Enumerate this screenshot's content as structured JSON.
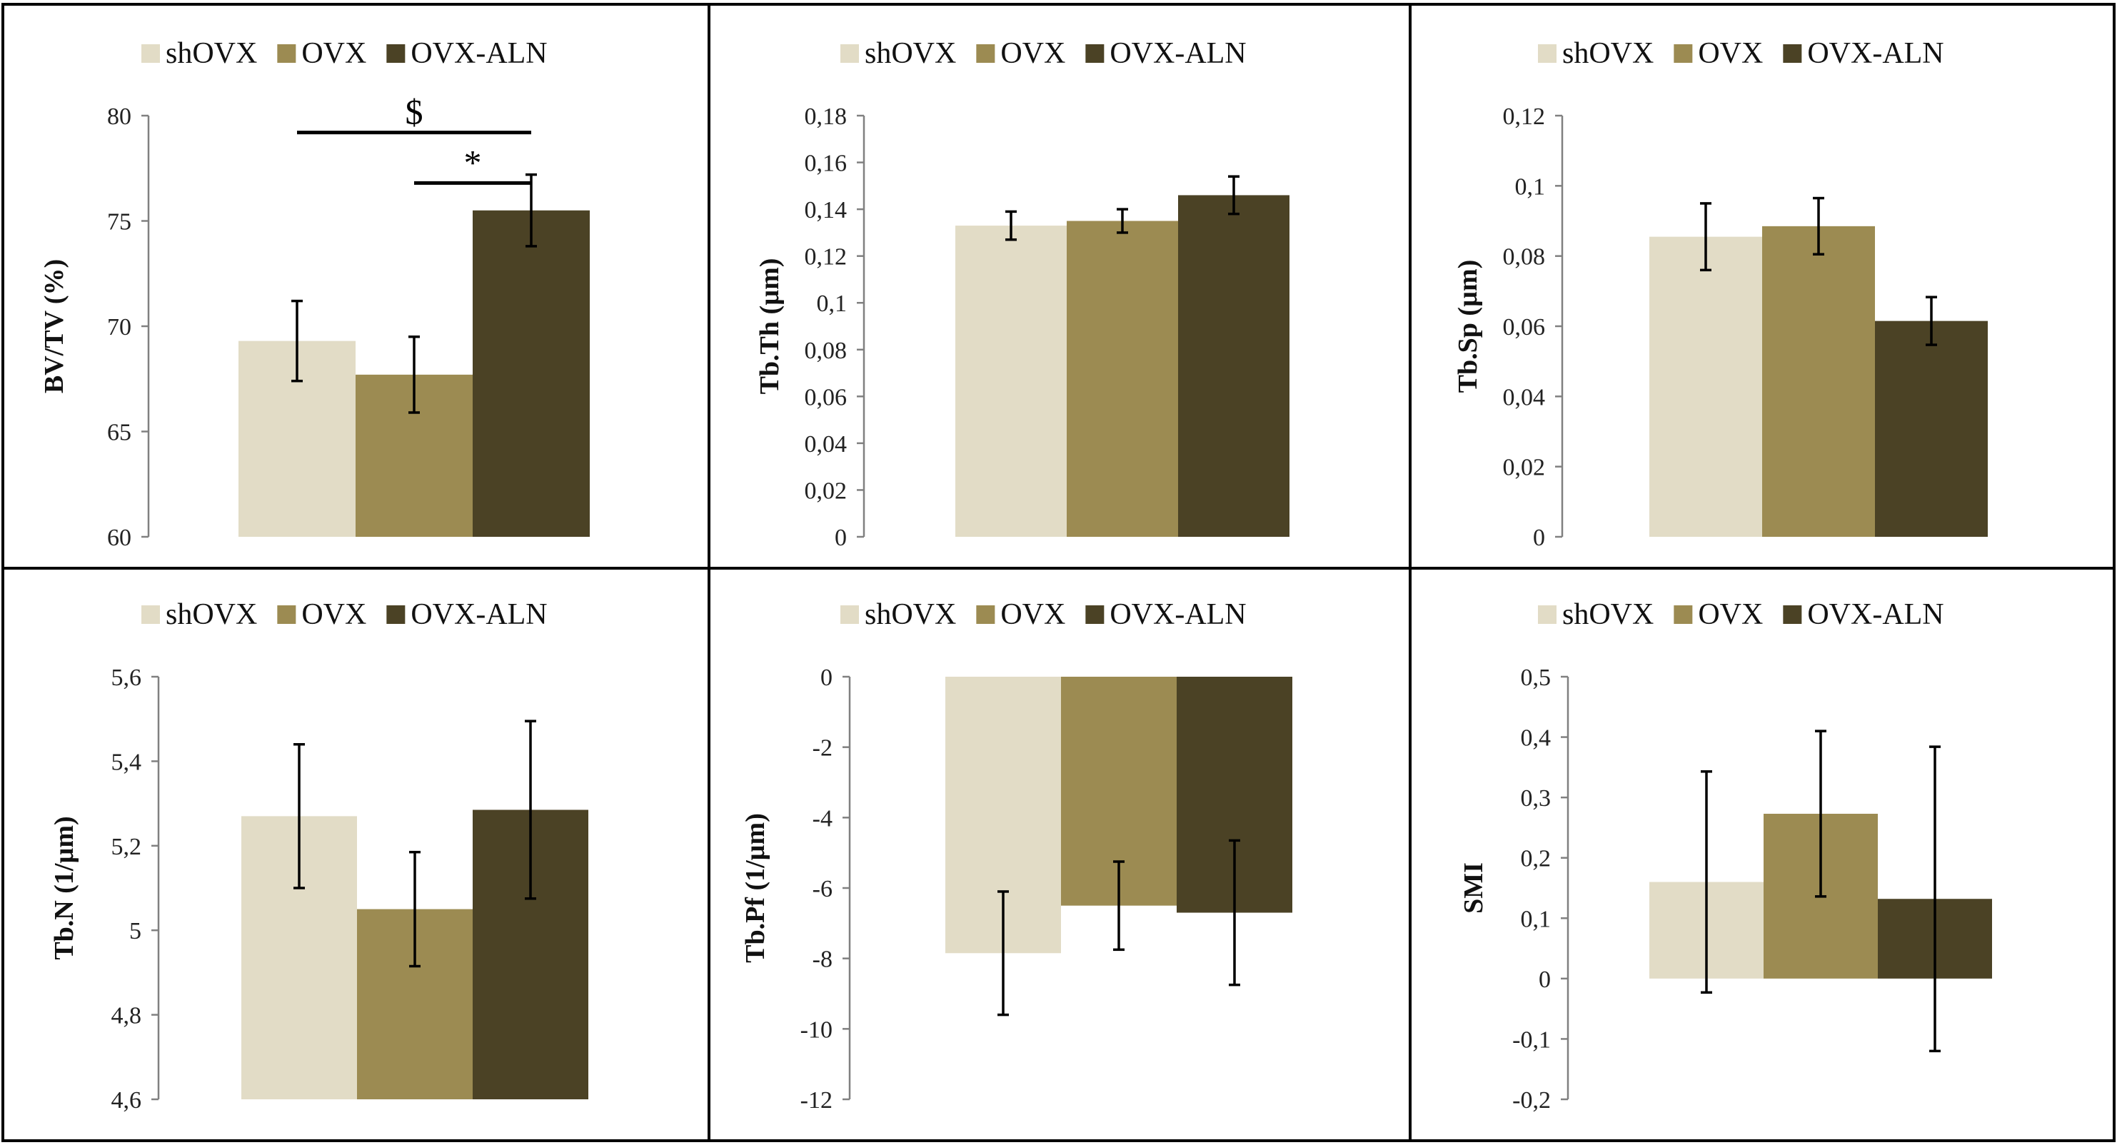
{
  "colors": {
    "shOVX": "#e2dcc6",
    "OVX": "#9c8b52",
    "OVX-ALN": "#4b4225"
  },
  "chart_data": [
    {
      "type": "bar",
      "ylabel": "BV/TV (%)",
      "legend": [
        "shOVX",
        "OVX",
        "OVX-ALN"
      ],
      "ylim": [
        60,
        80
      ],
      "ticks": [
        60,
        65,
        70,
        75,
        80
      ],
      "tick_labels": [
        "60",
        "65",
        "70",
        "75",
        "80"
      ],
      "series": [
        {
          "name": "shOVX",
          "value": 69.3,
          "error": 1.9
        },
        {
          "name": "OVX",
          "value": 67.7,
          "error": 1.8
        },
        {
          "name": "OVX-ALN",
          "value": 75.5,
          "error": 1.7
        }
      ],
      "annotations": [
        {
          "label": "$",
          "from": "shOVX",
          "to": "OVX-ALN",
          "y": 79.2
        },
        {
          "label": "*",
          "from": "OVX",
          "to": "OVX-ALN",
          "y": 76.8
        }
      ]
    },
    {
      "type": "bar",
      "ylabel": "Tb.Th (µm)",
      "legend": [
        "shOVX",
        "OVX",
        "OVX-ALN"
      ],
      "ylim": [
        0,
        0.18
      ],
      "ticks": [
        0,
        0.02,
        0.04,
        0.06,
        0.08,
        0.1,
        0.12,
        0.14,
        0.16,
        0.18
      ],
      "tick_labels": [
        "0",
        "0,02",
        "0,04",
        "0,06",
        "0,08",
        "0,1",
        "0,12",
        "0,14",
        "0,16",
        "0,18"
      ],
      "series": [
        {
          "name": "shOVX",
          "value": 0.133,
          "error": 0.006
        },
        {
          "name": "OVX",
          "value": 0.135,
          "error": 0.005
        },
        {
          "name": "OVX-ALN",
          "value": 0.146,
          "error": 0.008
        }
      ],
      "annotations": []
    },
    {
      "type": "bar",
      "ylabel": "Tb.Sp (µm)",
      "legend": [
        "shOVX",
        "OVX",
        "OVX-ALN"
      ],
      "ylim": [
        0,
        0.12
      ],
      "ticks": [
        0,
        0.02,
        0.04,
        0.06,
        0.08,
        0.1,
        0.12
      ],
      "tick_labels": [
        "0",
        "0,02",
        "0,04",
        "0,06",
        "0,08",
        "0,1",
        "0,12"
      ],
      "series": [
        {
          "name": "shOVX",
          "value": 0.0855,
          "error": 0.0095
        },
        {
          "name": "OVX",
          "value": 0.0885,
          "error": 0.008
        },
        {
          "name": "OVX-ALN",
          "value": 0.0615,
          "error": 0.0068
        }
      ],
      "annotations": []
    },
    {
      "type": "bar",
      "ylabel": "Tb.N (1/µm)",
      "legend": [
        "shOVX",
        "OVX",
        "OVX-ALN"
      ],
      "ylim": [
        4.6,
        5.6
      ],
      "ticks": [
        4.6,
        4.8,
        5.0,
        5.2,
        5.4,
        5.6
      ],
      "tick_labels": [
        "4,6",
        "4,8",
        "5",
        "5,2",
        "5,4",
        "5,6"
      ],
      "series": [
        {
          "name": "shOVX",
          "value": 5.27,
          "error": 0.17
        },
        {
          "name": "OVX",
          "value": 5.05,
          "error": 0.135
        },
        {
          "name": "OVX-ALN",
          "value": 5.285,
          "error": 0.21
        }
      ],
      "annotations": []
    },
    {
      "type": "bar",
      "ylabel": "Tb.Pf (1/µm)",
      "legend": [
        "shOVX",
        "OVX",
        "OVX-ALN"
      ],
      "ylim": [
        -12,
        0
      ],
      "ticks": [
        -12,
        -10,
        -8,
        -6,
        -4,
        -2,
        0
      ],
      "tick_labels": [
        "-12",
        "-10",
        "-8",
        "-6",
        "-4",
        "-2",
        "0"
      ],
      "series": [
        {
          "name": "shOVX",
          "value": -7.85,
          "error": 1.75
        },
        {
          "name": "OVX",
          "value": -6.5,
          "error": 1.25
        },
        {
          "name": "OVX-ALN",
          "value": -6.7,
          "error": 2.05
        }
      ],
      "annotations": []
    },
    {
      "type": "bar",
      "ylabel": "SMI",
      "legend": [
        "shOVX",
        "OVX",
        "OVX-ALN"
      ],
      "ylim": [
        -0.2,
        0.5
      ],
      "ticks": [
        -0.2,
        -0.1,
        0,
        0.1,
        0.2,
        0.3,
        0.4,
        0.5
      ],
      "tick_labels": [
        "-0,2",
        "-0,1",
        "0",
        "0,1",
        "0,2",
        "0,3",
        "0,4",
        "0,5"
      ],
      "series": [
        {
          "name": "shOVX",
          "value": 0.16,
          "error": 0.183
        },
        {
          "name": "OVX",
          "value": 0.273,
          "error": 0.137
        },
        {
          "name": "OVX-ALN",
          "value": 0.132,
          "error": 0.252
        }
      ],
      "annotations": []
    }
  ]
}
